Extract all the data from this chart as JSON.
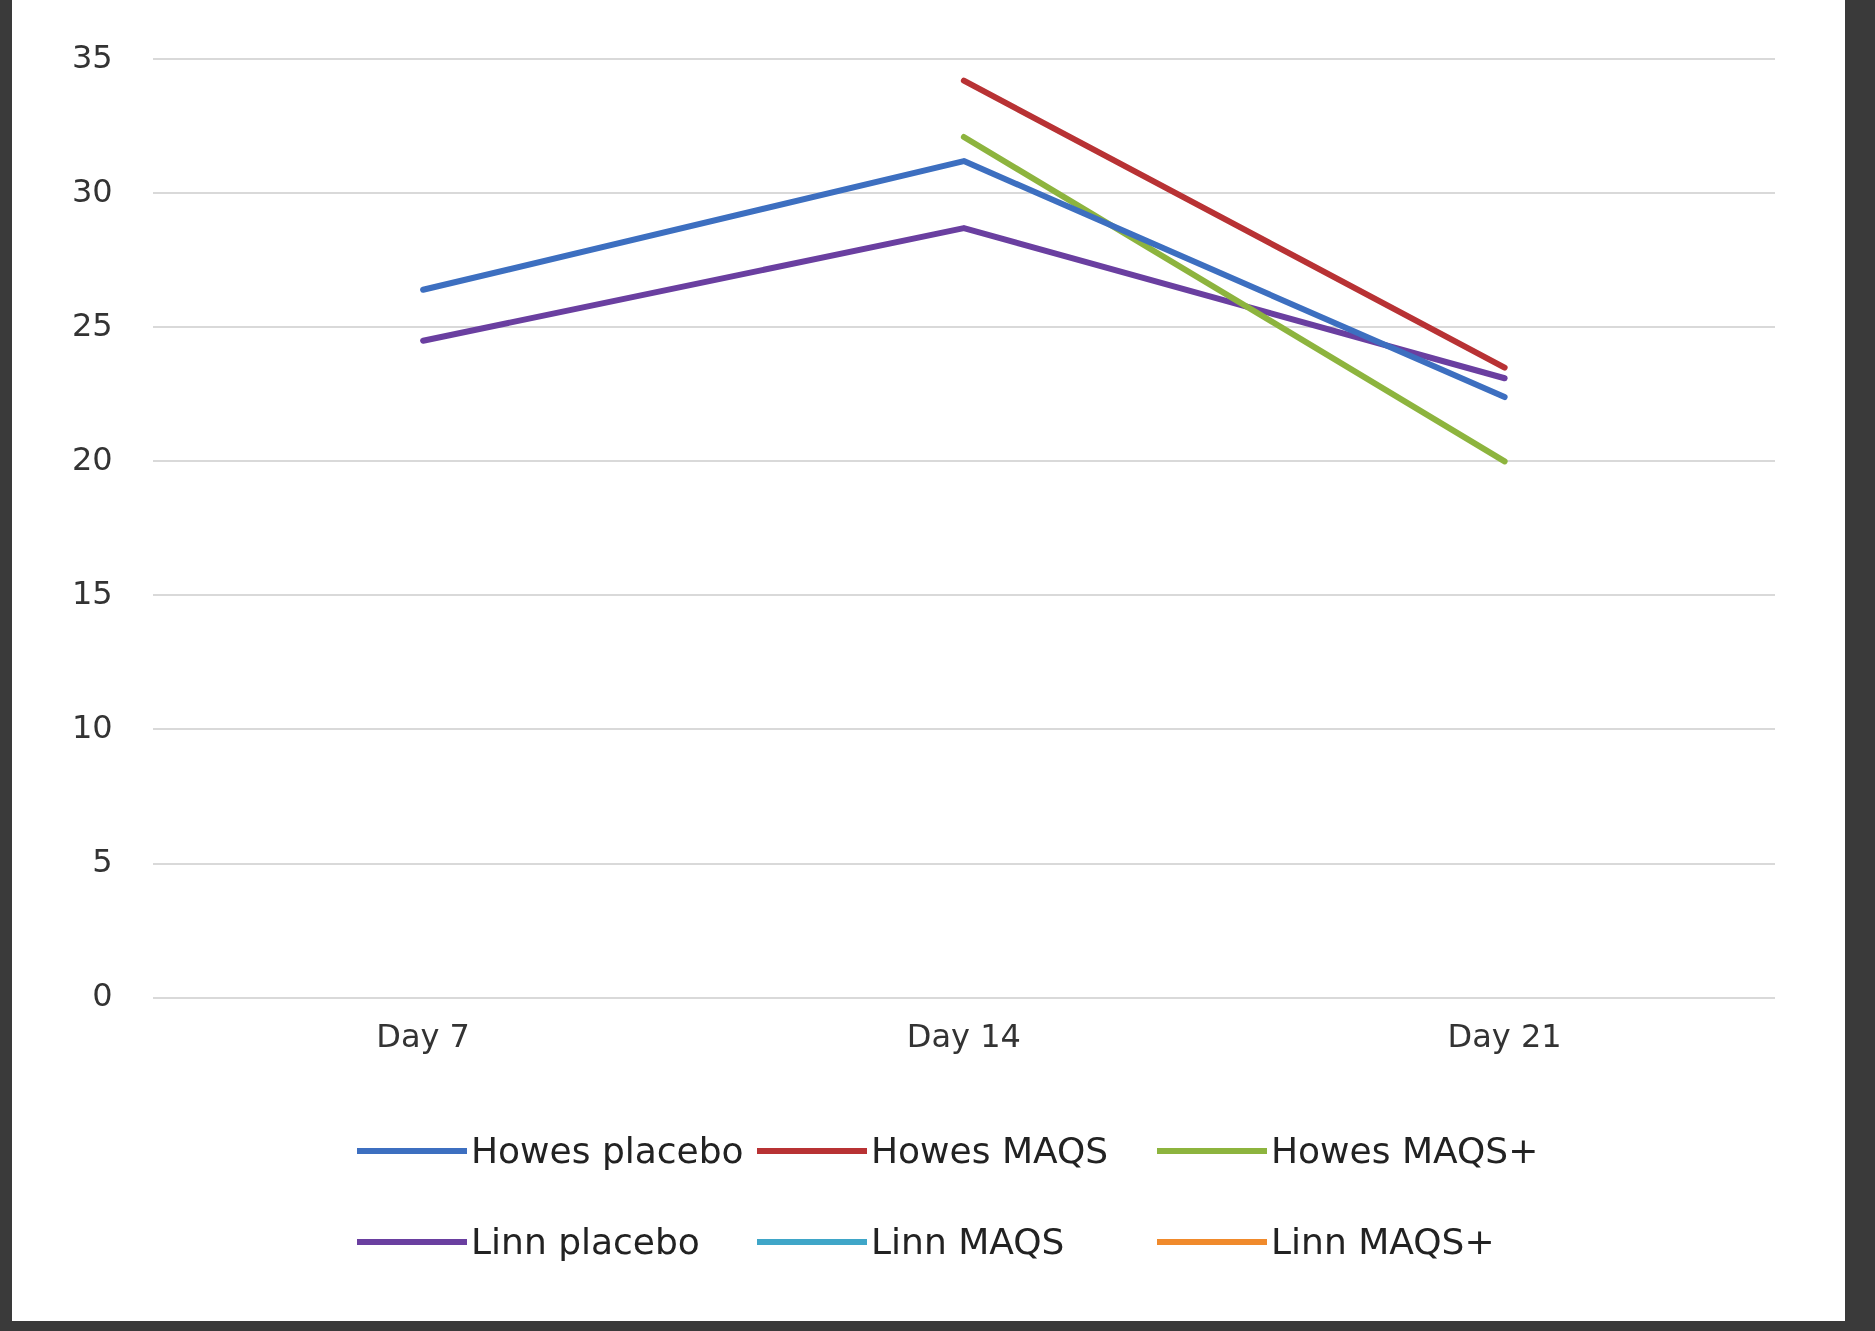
{
  "chart_data": {
    "type": "line",
    "categories": [
      "Day 7",
      "Day 14",
      "Day 21"
    ],
    "series": [
      {
        "name": "Howes placebo",
        "color": "#3d6fc0",
        "values": [
          26.4,
          31.2,
          22.4
        ]
      },
      {
        "name": "Howes MAQS",
        "color": "#b83234",
        "values": [
          null,
          34.2,
          23.5
        ]
      },
      {
        "name": "Howes MAQS+",
        "color": "#8db43e",
        "values": [
          null,
          32.1,
          20
        ]
      },
      {
        "name": "Linn placebo",
        "color": "#6a3fa0",
        "values": [
          24.5,
          28.7,
          23.1
        ]
      },
      {
        "name": "Linn MAQS",
        "color": "#3fa6c8",
        "values": [
          null,
          null,
          null
        ]
      },
      {
        "name": "Linn MAQS+",
        "color": "#f08a2c",
        "values": [
          null,
          null,
          null
        ]
      }
    ],
    "ylim": [
      0,
      35
    ],
    "yticks": [
      0,
      5,
      10,
      15,
      20,
      25,
      30,
      35
    ],
    "grid": "y",
    "legend": "bottom",
    "marker": "none",
    "line_style": "solid"
  }
}
